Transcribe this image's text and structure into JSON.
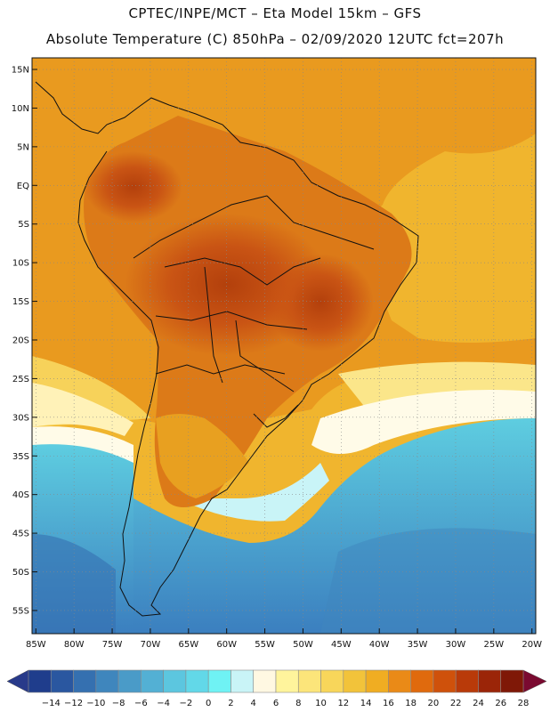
{
  "header": {
    "line1": "CPTEC/INPE/MCT –  Eta Model 15km – GFS",
    "line2": "Absolute Temperature (C) 850hPa – 02/09/2020 12UTC fct=207h"
  },
  "map": {
    "lat_labels": [
      "15N",
      "10N",
      "5N",
      "EQ",
      "5S",
      "10S",
      "15S",
      "20S",
      "25S",
      "30S",
      "35S",
      "40S",
      "45S",
      "50S",
      "55S"
    ],
    "lat_values": [
      15,
      10,
      5,
      0,
      -5,
      -10,
      -15,
      -20,
      -25,
      -30,
      -35,
      -40,
      -45,
      -50,
      -55
    ],
    "lon_labels": [
      "85W",
      "80W",
      "75W",
      "70W",
      "65W",
      "60W",
      "55W",
      "50W",
      "45W",
      "40W",
      "35W",
      "30W",
      "25W",
      "20W"
    ],
    "lon_values": [
      -85,
      -80,
      -75,
      -70,
      -65,
      -60,
      -55,
      -50,
      -45,
      -40,
      -35,
      -30,
      -25,
      -20
    ],
    "extent": {
      "lon_min": -85.5,
      "lon_max": -19.5,
      "lat_min": -58,
      "lat_max": 16.5
    }
  },
  "colorbar": {
    "labels": [
      "-14",
      "-12",
      "-10",
      "-8",
      "-6",
      "-4",
      "-2",
      "0",
      "2",
      "4",
      "6",
      "8",
      "10",
      "12",
      "14",
      "16",
      "18",
      "20",
      "22",
      "24",
      "26",
      "28"
    ],
    "colors": [
      "#1f3d8c",
      "#2a57a0",
      "#3570b0",
      "#3f86bd",
      "#4a9bc8",
      "#53b0d4",
      "#5cc6df",
      "#62d8e8",
      "#6ff2f4",
      "#c9f4f7",
      "#fff8e2",
      "#fff49c",
      "#fce57a",
      "#f8d65a",
      "#f2c33a",
      "#f0ad22",
      "#ea8a17",
      "#e06a0d",
      "#cf510b",
      "#b93a09",
      "#9b2508",
      "#7f1807"
    ],
    "under_color": "#283a8a",
    "over_color": "#7a0a30"
  }
}
